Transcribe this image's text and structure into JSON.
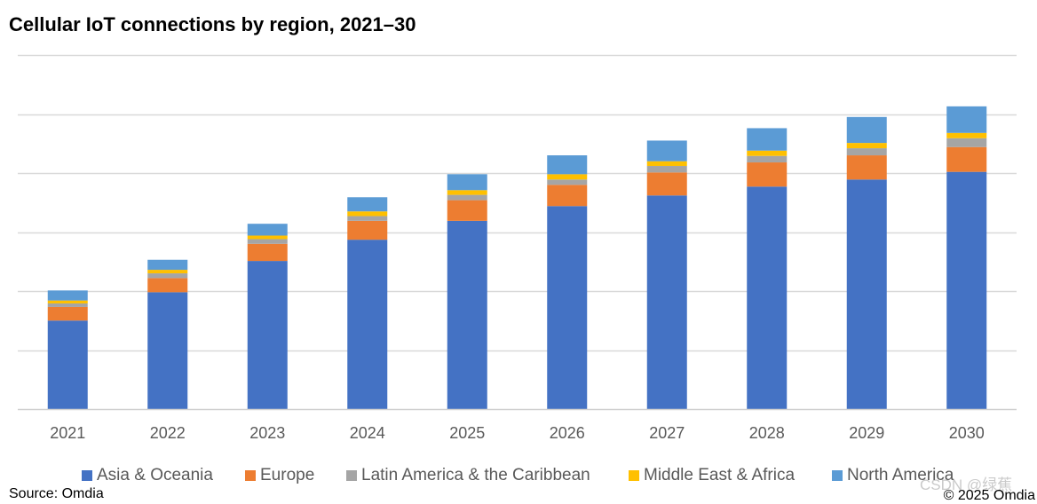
{
  "chart_data": {
    "type": "bar",
    "stacked": true,
    "title": "Cellular IoT connections by region, 2021–30",
    "xlabel": "",
    "ylabel": "",
    "categories": [
      "2021",
      "2022",
      "2023",
      "2024",
      "2025",
      "2026",
      "2027",
      "2028",
      "2029",
      "2030"
    ],
    "ylim": [
      0,
      6
    ],
    "yticks_visible": false,
    "grid": true,
    "legend": "bottom",
    "series": [
      {
        "name": "Asia & Oceania",
        "color": "#4472C4",
        "values": [
          1.5,
          1.98,
          2.51,
          2.87,
          3.19,
          3.44,
          3.62,
          3.77,
          3.89,
          4.02
        ]
      },
      {
        "name": "Europe",
        "color": "#ED7D31",
        "values": [
          0.23,
          0.24,
          0.29,
          0.32,
          0.35,
          0.36,
          0.39,
          0.41,
          0.41,
          0.42
        ]
      },
      {
        "name": "Latin America & the Caribbean",
        "color": "#A5A5A5",
        "values": [
          0.06,
          0.08,
          0.08,
          0.08,
          0.09,
          0.09,
          0.11,
          0.11,
          0.12,
          0.15
        ]
      },
      {
        "name": "Middle East & Africa",
        "color": "#FFC000",
        "values": [
          0.05,
          0.06,
          0.06,
          0.08,
          0.08,
          0.09,
          0.08,
          0.09,
          0.09,
          0.09
        ]
      },
      {
        "name": "North America",
        "color": "#5B9BD5",
        "values": [
          0.17,
          0.17,
          0.2,
          0.24,
          0.27,
          0.32,
          0.35,
          0.38,
          0.44,
          0.45
        ]
      }
    ]
  },
  "footer": {
    "source": "Source: Omdia",
    "copyright": "© 2025 Omdia"
  },
  "watermark": "CSDN @绿蕉"
}
